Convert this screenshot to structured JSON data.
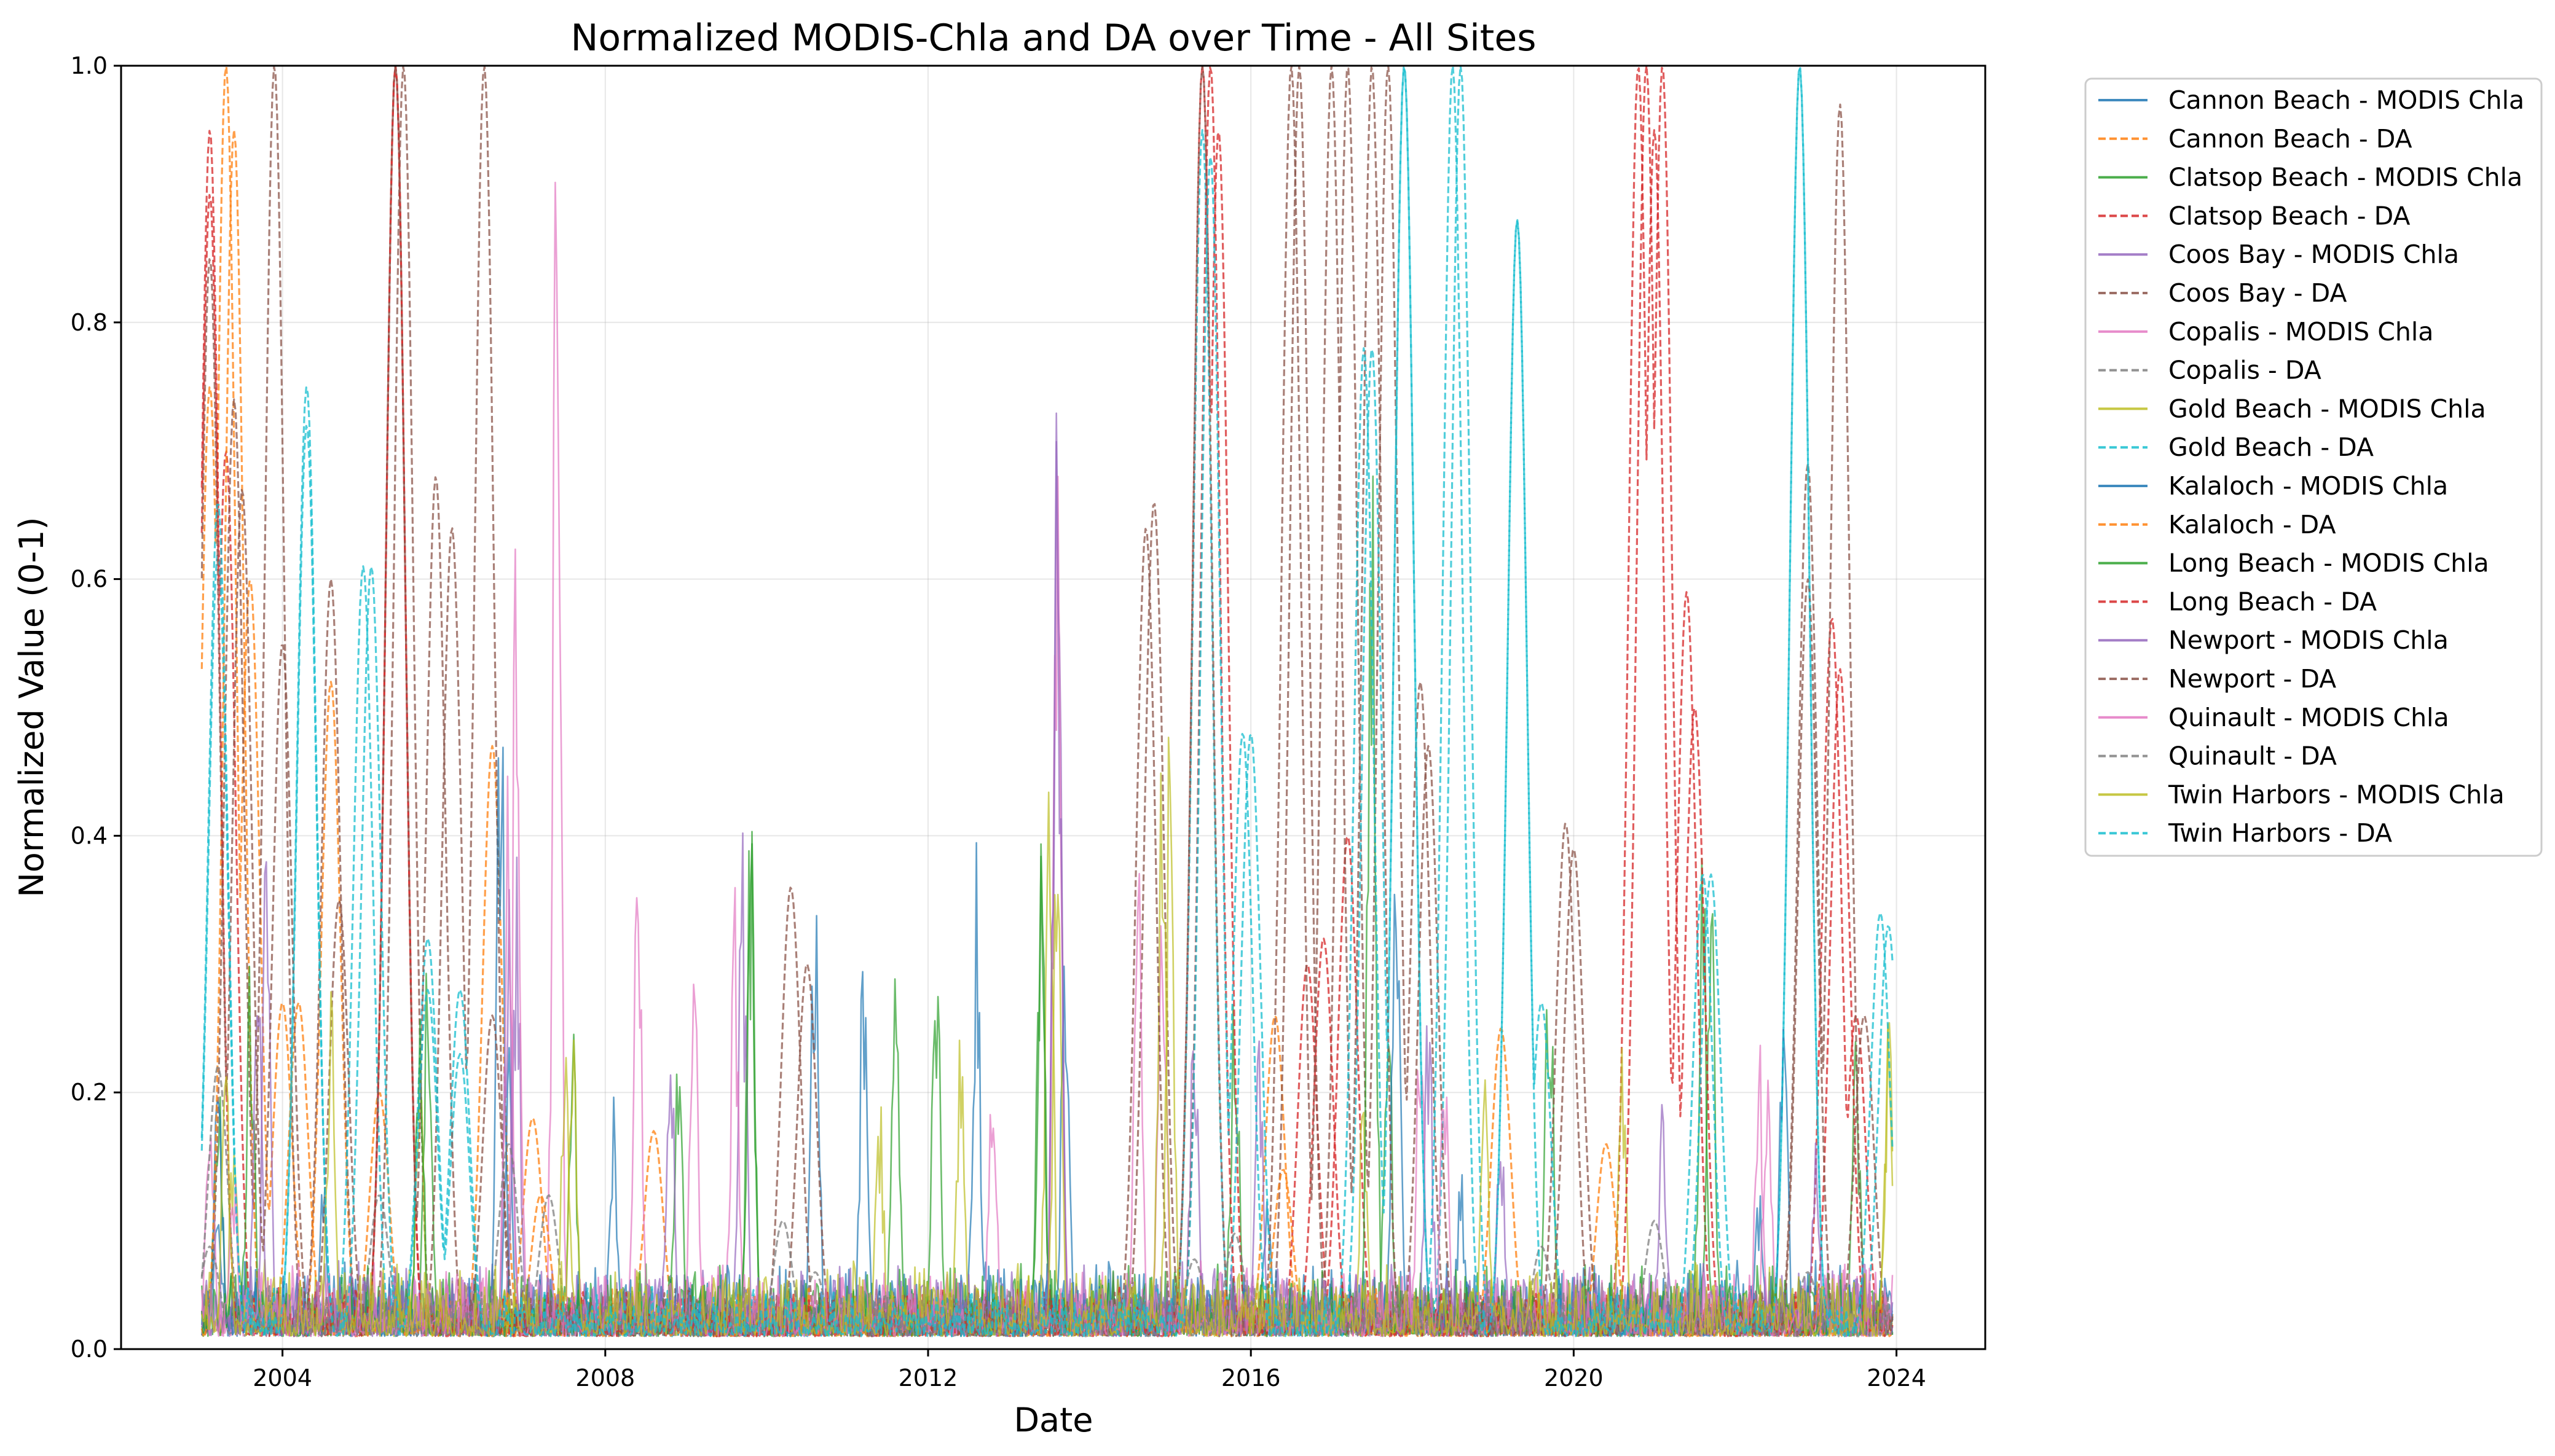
{
  "chart_data": {
    "type": "line",
    "title": "Normalized MODIS-Chla and DA over Time - All Sites",
    "xlabel": "Date",
    "ylabel": "Normalized Value (0-1)",
    "xlim": [
      2002.0,
      2025.1
    ],
    "ylim": [
      0,
      1
    ],
    "x_ticks": [
      "2004",
      "2008",
      "2012",
      "2016",
      "2020",
      "2024"
    ],
    "y_ticks": [
      "0.0",
      "0.2",
      "0.4",
      "0.6",
      "0.8",
      "1.0"
    ],
    "grid": true,
    "legend_position": "outside-right",
    "series": [
      {
        "name": "Cannon Beach - MODIS Chla",
        "style": "solid",
        "color": "#1f77b4",
        "peaks": [
          [
            2003.2,
            0.13
          ],
          [
            2004.5,
            0.14
          ],
          [
            2006.8,
            0.24
          ],
          [
            2010.6,
            0.39
          ],
          [
            2012.6,
            0.41
          ],
          [
            2016.2,
            0.13
          ],
          [
            2018.6,
            0.15
          ],
          [
            2022.3,
            0.13
          ]
        ]
      },
      {
        "name": "Cannon Beach - DA",
        "style": "dashed",
        "color": "#ff7f0e",
        "peaks": [
          [
            2003.1,
            0.75
          ],
          [
            2003.3,
            1.0
          ],
          [
            2003.6,
            0.6
          ],
          [
            2004.0,
            0.27
          ],
          [
            2004.6,
            0.52
          ],
          [
            2005.2,
            0.2
          ],
          [
            2006.6,
            0.47
          ],
          [
            2007.1,
            0.18
          ],
          [
            2008.6,
            0.17
          ],
          [
            2016.3,
            0.26
          ],
          [
            2019.1,
            0.25
          ]
        ]
      },
      {
        "name": "Clatsop Beach - MODIS Chla",
        "style": "solid",
        "color": "#2ca02c",
        "peaks": [
          [
            2003.2,
            0.24
          ],
          [
            2005.8,
            0.33
          ],
          [
            2007.6,
            0.26
          ],
          [
            2009.8,
            0.44
          ],
          [
            2011.6,
            0.36
          ],
          [
            2013.4,
            0.4
          ],
          [
            2015.8,
            0.32
          ],
          [
            2017.7,
            0.33
          ],
          [
            2019.7,
            0.36
          ],
          [
            2021.6,
            0.43
          ],
          [
            2023.5,
            0.25
          ]
        ]
      },
      {
        "name": "Clatsop Beach - DA",
        "style": "dashed",
        "color": "#d62728",
        "peaks": [
          [
            2003.1,
            0.95
          ],
          [
            2003.3,
            0.7
          ],
          [
            2005.4,
            1.0
          ],
          [
            2015.4,
            1.0
          ],
          [
            2015.6,
            0.95
          ],
          [
            2016.7,
            0.3
          ],
          [
            2017.2,
            0.4
          ],
          [
            2020.8,
            1.0
          ],
          [
            2021.0,
            0.95
          ],
          [
            2021.4,
            0.59
          ],
          [
            2023.2,
            0.57
          ],
          [
            2023.5,
            0.26
          ]
        ]
      },
      {
        "name": "Coos Bay - MODIS Chla",
        "style": "solid",
        "color": "#9467bd",
        "peaks": [
          [
            2003.8,
            0.41
          ],
          [
            2006.9,
            0.39
          ],
          [
            2009.7,
            0.41
          ],
          [
            2013.6,
            0.83
          ],
          [
            2015.3,
            0.32
          ],
          [
            2018.2,
            0.3
          ],
          [
            2021.1,
            0.22
          ]
        ]
      },
      {
        "name": "Coos Bay - DA",
        "style": "dashed",
        "color": "#8c564b",
        "peaks": [
          [
            2003.4,
            0.74
          ],
          [
            2003.9,
            1.0
          ],
          [
            2004.6,
            0.6
          ],
          [
            2005.5,
            1.0
          ],
          [
            2006.1,
            0.64
          ],
          [
            2006.5,
            1.0
          ],
          [
            2010.3,
            0.36
          ],
          [
            2014.8,
            0.66
          ],
          [
            2016.6,
            1.0
          ],
          [
            2017.2,
            1.0
          ],
          [
            2017.7,
            1.0
          ],
          [
            2018.1,
            0.52
          ],
          [
            2019.9,
            0.41
          ],
          [
            2022.9,
            0.69
          ],
          [
            2023.3,
            0.97
          ]
        ]
      },
      {
        "name": "Copalis - MODIS Chla",
        "style": "solid",
        "color": "#e377c2",
        "peaks": [
          [
            2003.1,
            0.2
          ],
          [
            2006.9,
            0.7
          ],
          [
            2007.4,
            1.0
          ],
          [
            2008.4,
            0.43
          ],
          [
            2009.6,
            0.38
          ],
          [
            2013.6,
            0.86
          ],
          [
            2014.9,
            0.48
          ],
          [
            2018.1,
            0.31
          ],
          [
            2022.4,
            0.27
          ]
        ]
      },
      {
        "name": "Copalis - DA",
        "style": "dashed",
        "color": "#7f7f7f",
        "peaks": [
          [
            2003.1,
            0.08
          ],
          [
            2005.2,
            0.12
          ],
          [
            2007.3,
            0.12
          ],
          [
            2010.6,
            0.06
          ],
          [
            2015.3,
            0.07
          ],
          [
            2019.6,
            0.08
          ],
          [
            2022.9,
            0.06
          ]
        ]
      },
      {
        "name": "Gold Beach - MODIS Chla",
        "style": "solid",
        "color": "#bcbd22",
        "peaks": [
          [
            2003.4,
            0.2
          ],
          [
            2005.7,
            0.22
          ],
          [
            2007.5,
            0.3
          ],
          [
            2011.4,
            0.21
          ],
          [
            2013.5,
            0.48
          ],
          [
            2014.9,
            0.53
          ],
          [
            2017.4,
            0.23
          ],
          [
            2020.6,
            0.28
          ],
          [
            2023.9,
            0.28
          ]
        ]
      },
      {
        "name": "Gold Beach - DA",
        "style": "dashed",
        "color": "#17becf",
        "peaks": [
          [
            2003.2,
            0.62
          ],
          [
            2004.3,
            0.75
          ],
          [
            2005.0,
            0.61
          ],
          [
            2005.8,
            0.32
          ],
          [
            2006.2,
            0.23
          ],
          [
            2015.4,
            0.95
          ],
          [
            2016.0,
            0.48
          ],
          [
            2017.5,
            0.78
          ],
          [
            2017.9,
            1.0
          ],
          [
            2018.6,
            1.0
          ],
          [
            2019.3,
            0.88
          ],
          [
            2019.6,
            0.27
          ],
          [
            2021.7,
            0.37
          ],
          [
            2022.8,
            1.0
          ],
          [
            2023.9,
            0.33
          ]
        ]
      },
      {
        "name": "Kalaloch - MODIS Chla",
        "style": "solid",
        "color": "#1f77b4",
        "peaks": [
          [
            2003.2,
            0.25
          ],
          [
            2006.7,
            0.61
          ],
          [
            2008.1,
            0.2
          ],
          [
            2011.2,
            0.33
          ],
          [
            2013.7,
            0.35
          ],
          [
            2017.8,
            0.47
          ],
          [
            2022.6,
            0.29
          ]
        ]
      },
      {
        "name": "Kalaloch - DA",
        "style": "dashed",
        "color": "#ff7f0e",
        "peaks": [
          [
            2003.4,
            0.95
          ],
          [
            2004.2,
            0.27
          ],
          [
            2007.2,
            0.12
          ],
          [
            2016.4,
            0.14
          ],
          [
            2020.4,
            0.16
          ]
        ]
      },
      {
        "name": "Long Beach - MODIS Chla",
        "style": "solid",
        "color": "#2ca02c",
        "peaks": [
          [
            2003.6,
            0.32
          ],
          [
            2005.7,
            0.31
          ],
          [
            2008.9,
            0.29
          ],
          [
            2009.8,
            0.44
          ],
          [
            2012.1,
            0.36
          ],
          [
            2013.4,
            0.4
          ],
          [
            2017.5,
            0.78
          ],
          [
            2021.7,
            0.43
          ]
        ]
      },
      {
        "name": "Long Beach - DA",
        "style": "dashed",
        "color": "#d62728",
        "peaks": [
          [
            2003.1,
            0.9
          ],
          [
            2005.4,
            1.0
          ],
          [
            2015.5,
            1.0
          ],
          [
            2016.9,
            0.32
          ],
          [
            2020.9,
            1.0
          ],
          [
            2021.1,
            1.0
          ],
          [
            2021.5,
            0.5
          ],
          [
            2023.3,
            0.53
          ]
        ]
      },
      {
        "name": "Newport - MODIS Chla",
        "style": "solid",
        "color": "#9467bd",
        "peaks": [
          [
            2003.7,
            0.42
          ],
          [
            2006.8,
            0.38
          ],
          [
            2008.8,
            0.3
          ],
          [
            2013.6,
            0.82
          ],
          [
            2016.1,
            0.26
          ],
          [
            2019.1,
            0.21
          ],
          [
            2023.0,
            0.17
          ]
        ]
      },
      {
        "name": "Newport - DA",
        "style": "dashed",
        "color": "#8c564b",
        "peaks": [
          [
            2003.1,
            0.85
          ],
          [
            2003.5,
            0.67
          ],
          [
            2004.0,
            0.55
          ],
          [
            2004.7,
            0.35
          ],
          [
            2005.4,
            1.0
          ],
          [
            2005.9,
            0.68
          ],
          [
            2006.6,
            0.26
          ],
          [
            2010.5,
            0.3
          ],
          [
            2014.7,
            0.64
          ],
          [
            2015.4,
            1.0
          ],
          [
            2016.5,
            1.0
          ],
          [
            2017.0,
            1.0
          ],
          [
            2017.5,
            1.0
          ],
          [
            2018.2,
            0.47
          ],
          [
            2020.0,
            0.39
          ],
          [
            2022.9,
            0.6
          ],
          [
            2023.6,
            0.26
          ]
        ]
      },
      {
        "name": "Quinault - MODIS Chla",
        "style": "solid",
        "color": "#e377c2",
        "peaks": [
          [
            2003.4,
            0.16
          ],
          [
            2006.8,
            0.46
          ],
          [
            2009.1,
            0.36
          ],
          [
            2012.8,
            0.24
          ],
          [
            2014.6,
            0.4
          ],
          [
            2018.4,
            0.25
          ],
          [
            2022.3,
            0.27
          ]
        ]
      },
      {
        "name": "Quinault - DA",
        "style": "dashed",
        "color": "#7f7f7f",
        "peaks": [
          [
            2003.2,
            0.22
          ],
          [
            2006.8,
            0.16
          ],
          [
            2010.2,
            0.1
          ],
          [
            2015.8,
            0.09
          ],
          [
            2021.0,
            0.1
          ]
        ]
      },
      {
        "name": "Twin Harbors - MODIS Chla",
        "style": "solid",
        "color": "#bcbd22",
        "peaks": [
          [
            2003.3,
            0.23
          ],
          [
            2004.6,
            0.29
          ],
          [
            2007.6,
            0.28
          ],
          [
            2012.4,
            0.25
          ],
          [
            2013.6,
            0.47
          ],
          [
            2015.0,
            0.53
          ],
          [
            2018.9,
            0.24
          ],
          [
            2023.9,
            0.28
          ]
        ]
      },
      {
        "name": "Twin Harbors - DA",
        "style": "dashed",
        "color": "#17becf",
        "peaks": [
          [
            2003.2,
            0.66
          ],
          [
            2004.3,
            0.72
          ],
          [
            2005.1,
            0.61
          ],
          [
            2005.8,
            0.28
          ],
          [
            2006.2,
            0.28
          ],
          [
            2015.5,
            0.93
          ],
          [
            2015.9,
            0.48
          ],
          [
            2017.4,
            0.78
          ],
          [
            2017.9,
            1.0
          ],
          [
            2018.5,
            1.0
          ],
          [
            2019.3,
            0.88
          ],
          [
            2021.6,
            0.37
          ],
          [
            2022.8,
            1.0
          ],
          [
            2023.8,
            0.34
          ]
        ]
      }
    ]
  }
}
